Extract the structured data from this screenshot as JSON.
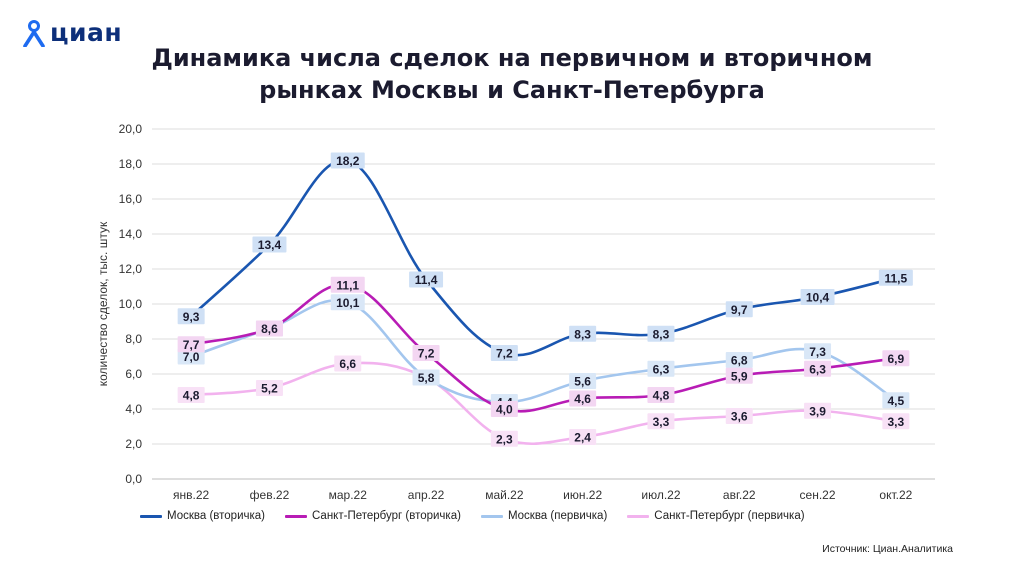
{
  "brand": {
    "name": "циан",
    "color": "#1e6bf0"
  },
  "title_line1": "Динамика числа сделок на первичном и вторичном",
  "title_line2": "рынках Москвы и Санкт-Петербурга",
  "source": "Источник: Циан.Аналитика",
  "chart_data": {
    "type": "line",
    "ylabel": "количество сделок, тыс. штук",
    "ylim": [
      0,
      20
    ],
    "yticks": [
      "0,0",
      "2,0",
      "4,0",
      "6,0",
      "8,0",
      "10,0",
      "12,0",
      "14,0",
      "16,0",
      "18,0",
      "20,0"
    ],
    "grid": true,
    "legend_position": "bottom",
    "categories": [
      "янв.22",
      "фев.22",
      "мар.22",
      "апр.22",
      "май.22",
      "июн.22",
      "июл.22",
      "авг.22",
      "сен.22",
      "окт.22"
    ],
    "series": [
      {
        "name": "Москва (вторичка)",
        "color": "#1a56b0",
        "values": [
          9.3,
          13.4,
          18.2,
          11.4,
          7.2,
          8.3,
          8.3,
          9.7,
          10.4,
          11.5
        ],
        "labels": [
          "9,3",
          "13,4",
          "18,2",
          "11,4",
          "7,2",
          "8,3",
          "8,3",
          "9,7",
          "10,4",
          "11,5"
        ],
        "label_bg": "#cfe0f5"
      },
      {
        "name": "Санкт-Петербург (вторичка)",
        "color": "#b81cb5",
        "values": [
          7.7,
          8.6,
          11.1,
          7.2,
          4.0,
          4.6,
          4.8,
          5.9,
          6.3,
          6.9
        ],
        "labels": [
          "7,7",
          "8,6",
          "11,1",
          "7,2",
          "4,0",
          "4,6",
          "4,8",
          "5,9",
          "6,3",
          "6,9"
        ],
        "label_bg": "#f3d6f2"
      },
      {
        "name": "Москва (первичка)",
        "color": "#a3c6ee",
        "values": [
          7.0,
          8.6,
          10.1,
          5.8,
          4.4,
          5.6,
          6.3,
          6.8,
          7.3,
          4.5
        ],
        "labels": [
          "7,0",
          "8,6",
          "10,1",
          "5,8",
          "4,4",
          "5,6",
          "6,3",
          "6,8",
          "7,3",
          "4,5"
        ],
        "label_bg": "#d9e7f7"
      },
      {
        "name": "Санкт-Петербург (первичка)",
        "color": "#f2b2ee",
        "values": [
          4.8,
          5.2,
          6.6,
          5.8,
          2.3,
          2.4,
          3.3,
          3.6,
          3.9,
          3.3
        ],
        "labels": [
          "4,8",
          "5,2",
          "6,6",
          "5,8",
          "2,3",
          "2,4",
          "3,3",
          "3,6",
          "3,9",
          "3,3"
        ],
        "label_bg": "#f8e1f6"
      }
    ]
  }
}
